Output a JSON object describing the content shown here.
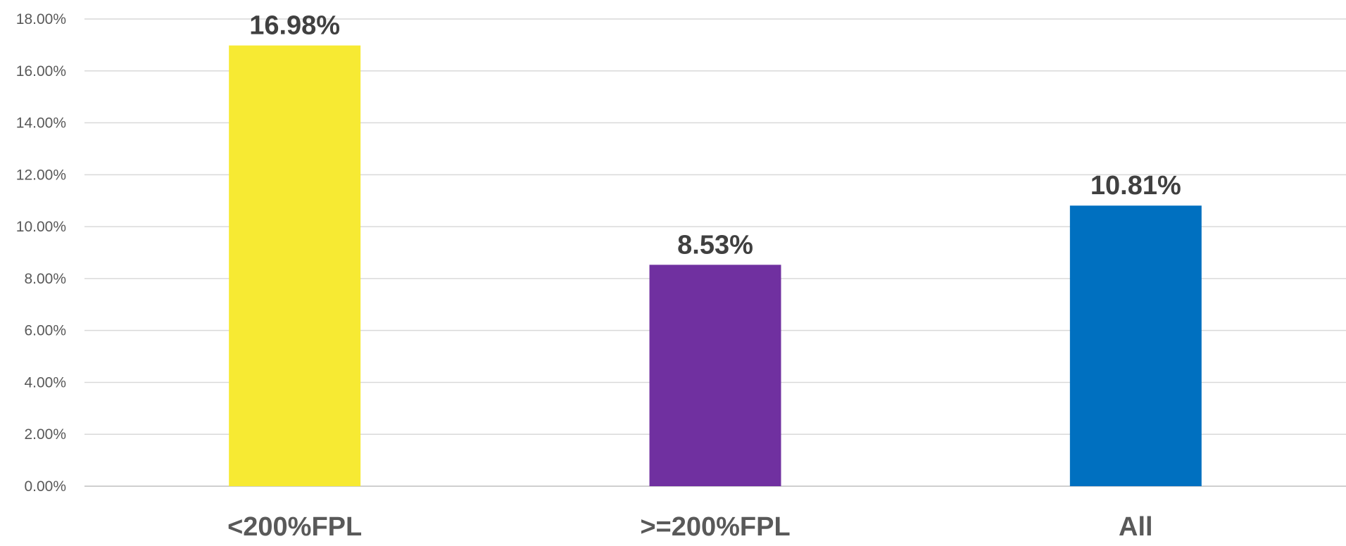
{
  "chart_data": {
    "type": "bar",
    "title": "",
    "xlabel": "",
    "ylabel": "",
    "categories": [
      "<200%FPL",
      ">=200%FPL",
      "All"
    ],
    "values": [
      16.98,
      8.53,
      10.81
    ],
    "data_labels": [
      "16.98%",
      "8.53%",
      "10.81%"
    ],
    "bar_colors": [
      "#f7ea33",
      "#7030a0",
      "#0070c0"
    ],
    "ylim": [
      0,
      18
    ],
    "y_ticks": [
      0,
      2,
      4,
      6,
      8,
      10,
      12,
      14,
      16,
      18
    ],
    "y_tick_labels": [
      "0.00%",
      "2.00%",
      "4.00%",
      "6.00%",
      "8.00%",
      "10.00%",
      "12.00%",
      "14.00%",
      "16.00%",
      "18.00%"
    ],
    "grid": true,
    "legend": "none"
  }
}
